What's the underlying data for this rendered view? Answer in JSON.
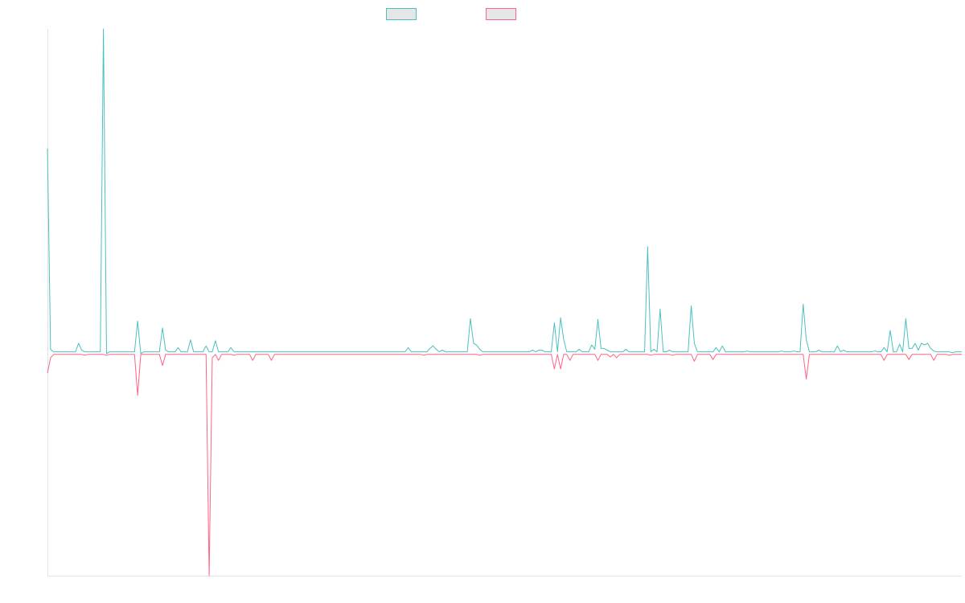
{
  "chart_data": {
    "type": "line",
    "title": "",
    "xlabel": "",
    "ylabel": "",
    "grid": false,
    "legend_placement": "top-center",
    "ylim": [
      -2.6,
      3.8
    ],
    "x_count": 295,
    "series": [
      {
        "name": "",
        "color": "#4bc0c0",
        "direction": "positive",
        "baseline_value": 0.02,
        "values_sparse": [
          [
            0,
            2.4
          ],
          [
            1,
            0.05
          ],
          [
            10,
            0.12
          ],
          [
            11,
            0.04
          ],
          [
            18,
            3.8
          ],
          [
            19,
            0.0
          ],
          [
            29,
            0.38
          ],
          [
            30,
            0.0
          ],
          [
            37,
            0.3
          ],
          [
            38,
            0.04
          ],
          [
            42,
            0.07
          ],
          [
            46,
            0.16
          ],
          [
            51,
            0.09
          ],
          [
            54,
            0.15
          ],
          [
            59,
            0.07
          ],
          [
            88,
            0.02
          ],
          [
            101,
            0.02
          ],
          [
            116,
            0.07
          ],
          [
            123,
            0.06
          ],
          [
            124,
            0.09
          ],
          [
            125,
            0.05
          ],
          [
            127,
            0.04
          ],
          [
            136,
            0.41
          ],
          [
            137,
            0.12
          ],
          [
            138,
            0.1
          ],
          [
            139,
            0.05
          ],
          [
            156,
            0.04
          ],
          [
            158,
            0.04
          ],
          [
            159,
            0.04
          ],
          [
            163,
            0.36
          ],
          [
            165,
            0.42
          ],
          [
            166,
            0.16
          ],
          [
            171,
            0.05
          ],
          [
            175,
            0.1
          ],
          [
            176,
            0.05
          ],
          [
            177,
            0.4
          ],
          [
            178,
            0.06
          ],
          [
            179,
            0.06
          ],
          [
            180,
            0.04
          ],
          [
            186,
            0.05
          ],
          [
            193,
            1.25
          ],
          [
            195,
            0.05
          ],
          [
            197,
            0.52
          ],
          [
            200,
            0.04
          ],
          [
            207,
            0.56
          ],
          [
            208,
            0.12
          ],
          [
            215,
            0.07
          ],
          [
            217,
            0.09
          ],
          [
            225,
            0.03
          ],
          [
            236,
            0.03
          ],
          [
            240,
            0.03
          ],
          [
            243,
            0.58
          ],
          [
            244,
            0.16
          ],
          [
            248,
            0.04
          ],
          [
            254,
            0.09
          ],
          [
            256,
            0.04
          ],
          [
            266,
            0.03
          ],
          [
            269,
            0.07
          ],
          [
            271,
            0.27
          ],
          [
            274,
            0.11
          ],
          [
            276,
            0.41
          ],
          [
            277,
            0.06
          ],
          [
            278,
            0.06
          ],
          [
            279,
            0.12
          ],
          [
            280,
            0.04
          ],
          [
            281,
            0.12
          ],
          [
            282,
            0.1
          ],
          [
            283,
            0.12
          ],
          [
            284,
            0.06
          ],
          [
            285,
            0.03
          ],
          [
            291,
            0.01
          ]
        ]
      },
      {
        "name": "",
        "color": "#ff6384",
        "direction": "negative",
        "baseline_value": -0.01,
        "values_sparse": [
          [
            0,
            -0.23
          ],
          [
            1,
            -0.05
          ],
          [
            12,
            -0.02
          ],
          [
            19,
            -0.02
          ],
          [
            29,
            -0.49
          ],
          [
            37,
            -0.14
          ],
          [
            52,
            -2.6
          ],
          [
            53,
            -0.05
          ],
          [
            55,
            -0.08
          ],
          [
            60,
            -0.02
          ],
          [
            66,
            -0.08
          ],
          [
            72,
            -0.08
          ],
          [
            102,
            -0.01
          ],
          [
            121,
            -0.02
          ],
          [
            139,
            -0.02
          ],
          [
            163,
            -0.18
          ],
          [
            165,
            -0.18
          ],
          [
            168,
            -0.08
          ],
          [
            177,
            -0.08
          ],
          [
            181,
            -0.04
          ],
          [
            183,
            -0.05
          ],
          [
            194,
            -0.02
          ],
          [
            201,
            -0.02
          ],
          [
            208,
            -0.09
          ],
          [
            214,
            -0.07
          ],
          [
            235,
            -0.01
          ],
          [
            244,
            -0.3
          ],
          [
            249,
            -0.01
          ],
          [
            269,
            -0.08
          ],
          [
            277,
            -0.07
          ],
          [
            285,
            -0.08
          ],
          [
            290,
            -0.02
          ]
        ]
      }
    ]
  }
}
